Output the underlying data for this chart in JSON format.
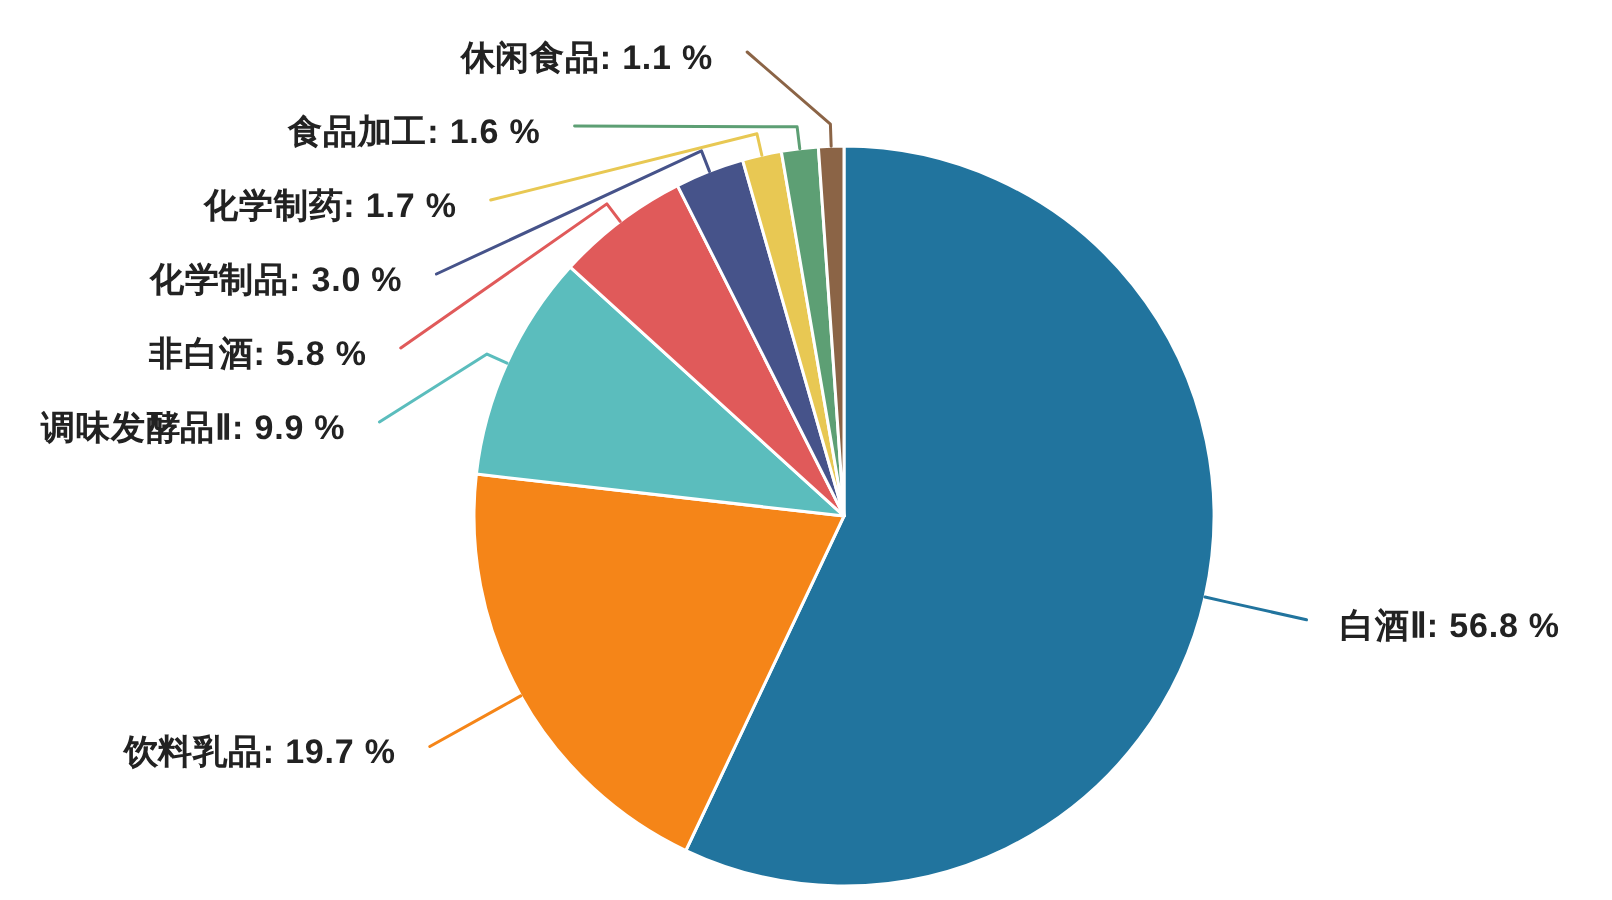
{
  "chart_data": {
    "type": "pie",
    "categories": [
      "白酒Ⅱ",
      "饮料乳品",
      "调味发酵品Ⅱ",
      "非白酒",
      "化学制品",
      "化学制药",
      "食品加工",
      "休闲食品"
    ],
    "values": [
      56.8,
      19.7,
      9.9,
      5.8,
      3.0,
      1.7,
      1.6,
      1.1
    ],
    "value_labels": [
      "56.8 %",
      "19.7 %",
      "9.9 %",
      "5.8 %",
      "3.0 %",
      "1.7 %",
      "1.6 %",
      "1.1 %"
    ],
    "colors": [
      "#21749e",
      "#f58518",
      "#5bbdbd",
      "#e05a5a",
      "#46538a",
      "#e8c853",
      "#5d9f74",
      "#8b6446"
    ]
  }
}
